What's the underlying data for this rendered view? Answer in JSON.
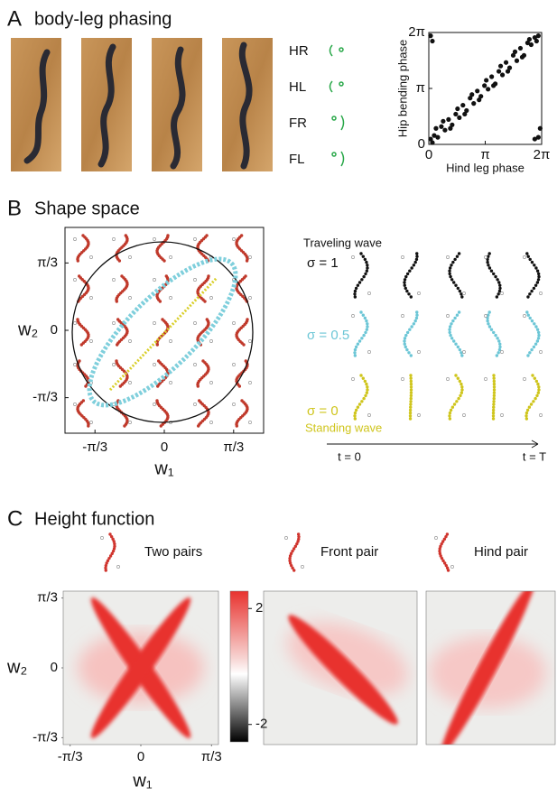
{
  "panels": [
    {
      "letter": "A",
      "title": "body-leg phasing"
    },
    {
      "letter": "B",
      "title": "Shape space"
    },
    {
      "letter": "C",
      "title": "Height function"
    }
  ],
  "legs": [
    "HR",
    "HL",
    "FR",
    "FL"
  ],
  "waves": {
    "traveling": "Traveling wave",
    "sigma": [
      "σ = 1",
      "σ = 0.5",
      "σ = 0"
    ],
    "standing": "Standing wave",
    "t_start": "t = 0",
    "t_end": "t = T"
  },
  "chart_data": [
    {
      "type": "scatter",
      "xlabel": "Hind leg phase",
      "ylabel": "Hip bending phase",
      "xlim": [
        0,
        6.2832
      ],
      "ylim": [
        0,
        6.2832
      ],
      "xticks": [
        0,
        {
          "value": 3.1416,
          "label": "π"
        },
        {
          "value": 6.2832,
          "label": "2π"
        }
      ],
      "yticks": [
        0,
        {
          "value": 3.1416,
          "label": "π"
        },
        {
          "value": 6.2832,
          "label": "2π"
        }
      ],
      "series": [
        {
          "color": "#111111",
          "x": [
            0.1,
            0.2,
            0.3,
            0.5,
            0.7,
            0.9,
            1.1,
            1.3,
            1.5,
            1.7,
            1.9,
            2.1,
            2.3,
            2.5,
            2.7,
            2.9,
            3.1,
            3.3,
            3.5,
            3.7,
            3.9,
            4.1,
            4.3,
            4.5,
            4.7,
            4.9,
            5.1,
            5.3,
            5.5,
            5.7,
            5.9,
            6.1,
            0.4,
            0.8,
            1.2,
            1.6,
            2.0,
            2.4,
            2.8,
            3.2,
            3.6,
            4.0,
            4.4,
            4.8,
            5.2,
            5.6,
            6.0,
            0.1,
            0.2,
            6.1,
            6.2,
            5.9
          ],
          "y": [
            0.3,
            0.1,
            0.5,
            0.4,
            1.0,
            0.8,
            1.4,
            1.1,
            1.7,
            1.5,
            2.2,
            1.9,
            2.6,
            2.3,
            3.0,
            2.7,
            3.3,
            3.1,
            3.8,
            3.4,
            4.1,
            3.9,
            4.6,
            4.3,
            5.0,
            4.7,
            5.4,
            5.0,
            5.7,
            5.6,
            6.0,
            6.1,
            0.9,
            1.3,
            0.9,
            2.0,
            1.7,
            2.8,
            2.5,
            3.6,
            3.3,
            4.4,
            4.1,
            5.2,
            4.9,
            5.9,
            5.8,
            6.1,
            5.8,
            0.4,
            0.9,
            0.3
          ]
        }
      ]
    },
    {
      "type": "shape-space",
      "xlabel": "w₁",
      "ylabel": "w₂",
      "xlim": [
        -1.5,
        1.5
      ],
      "ylim": [
        -1.6,
        1.6
      ],
      "xticks": [
        {
          "value": -1.0472,
          "label": "-π/3"
        },
        0,
        {
          "value": 1.0472,
          "label": "π/3"
        }
      ],
      "yticks": [
        {
          "value": -1.0472,
          "label": "-π/3"
        },
        0,
        {
          "value": 1.0472,
          "label": "π/3"
        }
      ]
    },
    {
      "type": "heatmap",
      "xlabel": "w₁",
      "ylabel": "w₂",
      "xlim": [
        -1.15,
        1.15
      ],
      "ylim": [
        -1.15,
        1.15
      ],
      "xticks": [
        {
          "value": -1.0472,
          "label": "-π/3"
        },
        0,
        {
          "value": 1.0472,
          "label": "π/3"
        }
      ],
      "yticks": [
        {
          "value": -1.0472,
          "label": "-π/3"
        },
        0,
        {
          "value": 1.0472,
          "label": "π/3"
        }
      ],
      "titles": [
        "Two pairs",
        "Front pair",
        "Hind pair"
      ],
      "colorbar": {
        "lim": [
          -2.6,
          2.6
        ],
        "ticks": [
          2,
          -2
        ]
      }
    }
  ]
}
